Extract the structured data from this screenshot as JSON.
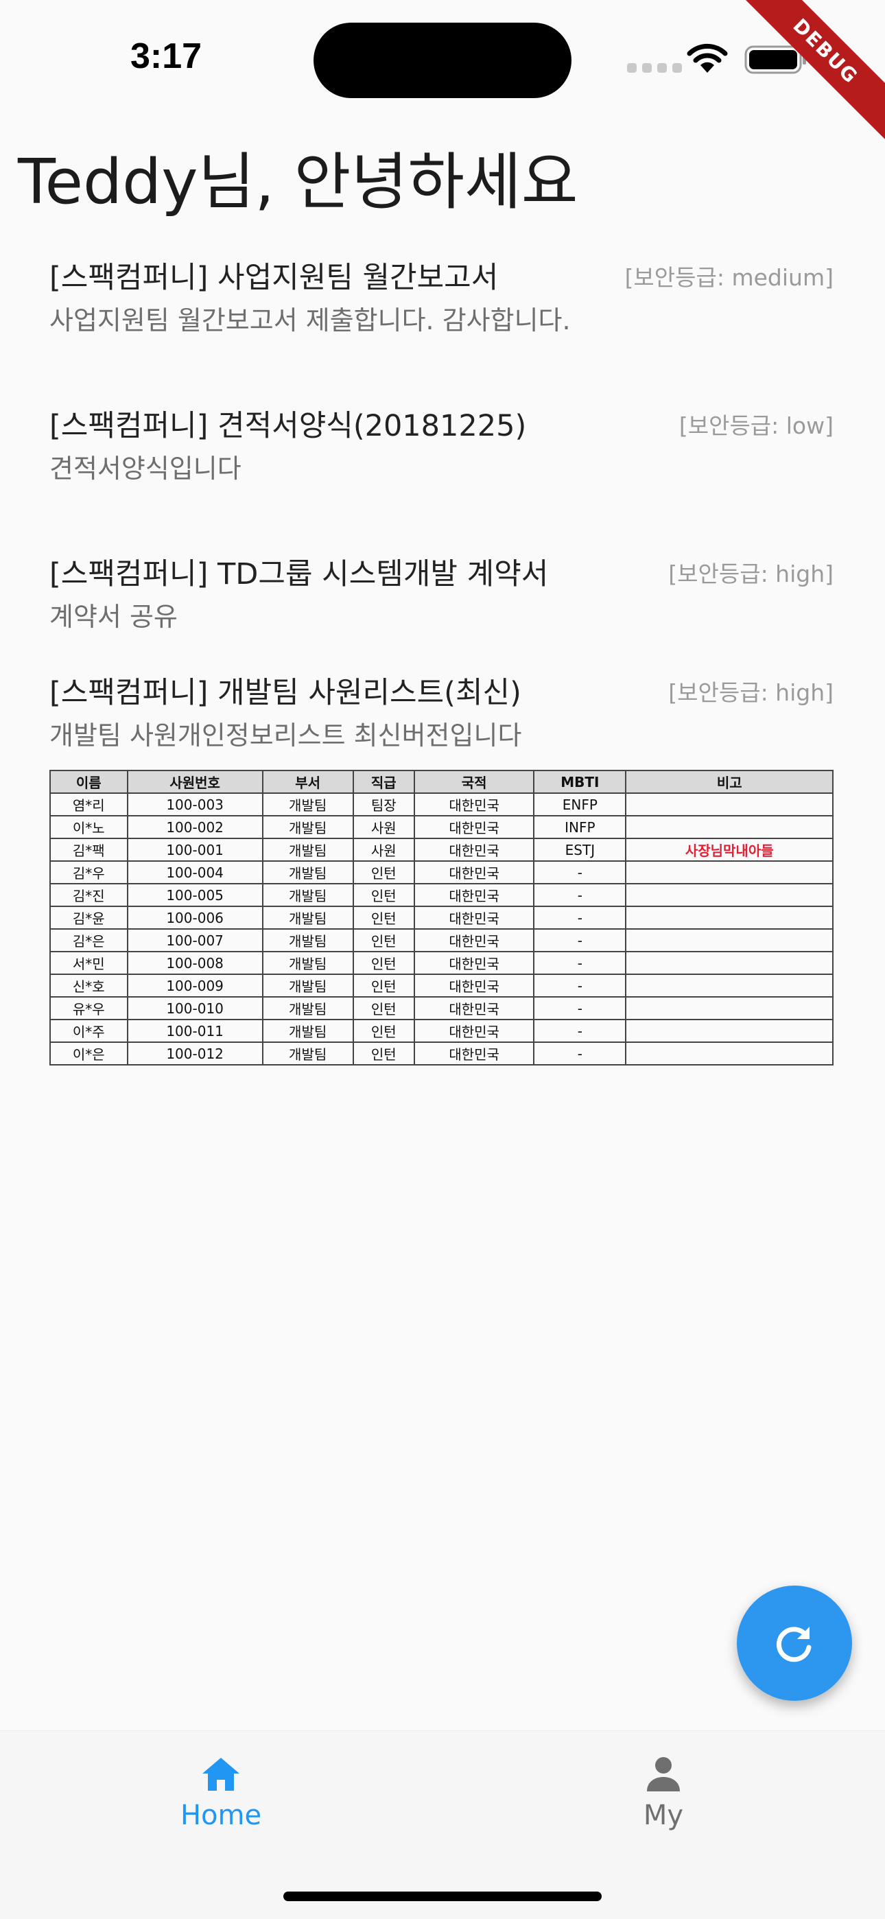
{
  "status_bar": {
    "time": "3:17"
  },
  "debug_banner": "DEBUG",
  "greeting": "Teddy님, 안녕하세요",
  "documents": [
    {
      "title": "[스팩컴퍼니] 사업지원팀 월간보고서",
      "level": "[보안등급: medium]",
      "description": "사업지원팀 월간보고서 제출합니다. 감사합니다."
    },
    {
      "title": "[스팩컴퍼니] 견적서양식(20181225)",
      "level": "[보안등급: low]",
      "description": "견적서양식입니다"
    },
    {
      "title": "[스팩컴퍼니] TD그룹 시스템개발 계약서",
      "level": "[보안등급: high]",
      "description": "계약서 공유"
    },
    {
      "title": "[스팩컴퍼니] 개발팀 사원리스트(최신)",
      "level": "[보안등급: high]",
      "description": "개발팀 사원개인정보리스트 최신버전입니다"
    }
  ],
  "employee_table": {
    "headers": [
      "이름",
      "사원번호",
      "부서",
      "직급",
      "국적",
      "MBTI",
      "비고"
    ],
    "rows": [
      [
        "염*리",
        "100-003",
        "개발팀",
        "팀장",
        "대한민국",
        "ENFP",
        ""
      ],
      [
        "이*노",
        "100-002",
        "개발팀",
        "사원",
        "대한민국",
        "INFP",
        ""
      ],
      [
        "김*팩",
        "100-001",
        "개발팀",
        "사원",
        "대한민국",
        "ESTJ",
        "사장님막내아들"
      ],
      [
        "김*우",
        "100-004",
        "개발팀",
        "인턴",
        "대한민국",
        "-",
        ""
      ],
      [
        "김*진",
        "100-005",
        "개발팀",
        "인턴",
        "대한민국",
        "-",
        ""
      ],
      [
        "김*윤",
        "100-006",
        "개발팀",
        "인턴",
        "대한민국",
        "-",
        ""
      ],
      [
        "김*은",
        "100-007",
        "개발팀",
        "인턴",
        "대한민국",
        "-",
        ""
      ],
      [
        "서*민",
        "100-008",
        "개발팀",
        "인턴",
        "대한민국",
        "-",
        ""
      ],
      [
        "신*호",
        "100-009",
        "개발팀",
        "인턴",
        "대한민국",
        "-",
        ""
      ],
      [
        "유*우",
        "100-010",
        "개발팀",
        "인턴",
        "대한민국",
        "-",
        ""
      ],
      [
        "이*주",
        "100-011",
        "개발팀",
        "인턴",
        "대한민국",
        "-",
        ""
      ],
      [
        "이*은",
        "100-012",
        "개발팀",
        "인턴",
        "대한민국",
        "-",
        ""
      ]
    ]
  },
  "fab": {
    "icon": "refresh-icon"
  },
  "bottom_nav": {
    "items": [
      {
        "label": "Home",
        "icon": "home-icon",
        "active": true
      },
      {
        "label": "My",
        "icon": "person-icon",
        "active": false
      }
    ],
    "active_color": "#2196f3",
    "inactive_color": "#6f6f6f"
  },
  "colors": {
    "accent": "#2d96ee",
    "note_red": "#e21f33",
    "debug_red": "#b71c1c"
  }
}
